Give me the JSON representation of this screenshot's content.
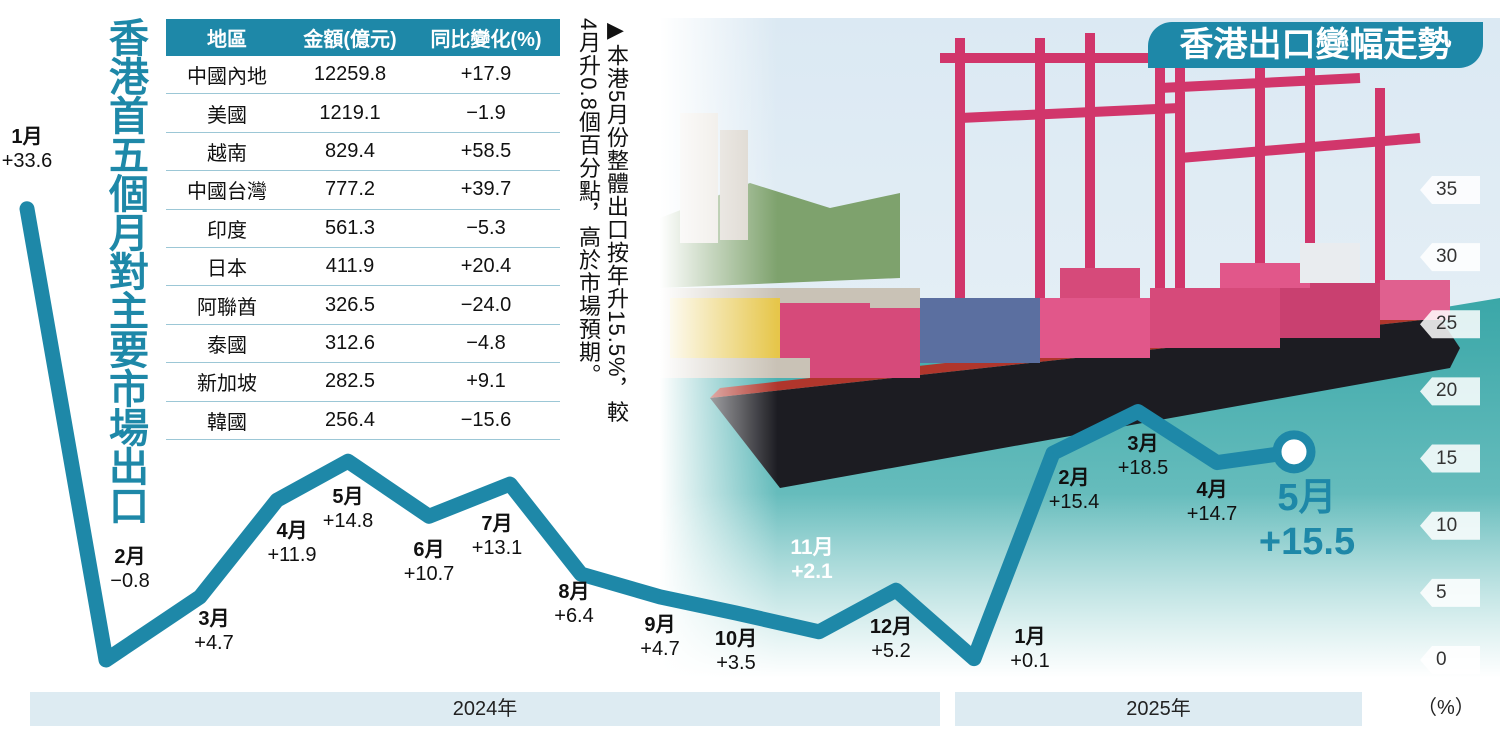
{
  "title_vertical": "香港首五個月對主要市場出口",
  "badge_title": "香港出口變幅走勢",
  "note_text": "▶本港5月份整體出口按年升15.5%，較4月升0.8個百分點，高於市場預期。",
  "table": {
    "headers": [
      "地區",
      "金額(億元)",
      "同比變化(%)"
    ],
    "rows": [
      [
        "中國內地",
        "12259.8",
        "+17.9"
      ],
      [
        "美國",
        "1219.1",
        "−1.9"
      ],
      [
        "越南",
        "829.4",
        "+58.5"
      ],
      [
        "中國台灣",
        "777.2",
        "+39.7"
      ],
      [
        "印度",
        "561.3",
        "−5.3"
      ],
      [
        "日本",
        "411.9",
        "+20.4"
      ],
      [
        "阿聯酋",
        "326.5",
        "−24.0"
      ],
      [
        "泰國",
        "312.6",
        "−4.8"
      ],
      [
        "新加坡",
        "282.5",
        "+9.1"
      ],
      [
        "韓國",
        "256.4",
        "−15.6"
      ]
    ]
  },
  "chart_data": {
    "type": "line",
    "categories": [
      "1月",
      "2月",
      "3月",
      "4月",
      "5月",
      "6月",
      "7月",
      "8月",
      "9月",
      "10月",
      "11月",
      "12月",
      "1月",
      "2月",
      "3月",
      "4月",
      "5月"
    ],
    "values": [
      33.6,
      -0.8,
      4.7,
      11.9,
      14.8,
      10.7,
      13.1,
      6.4,
      4.7,
      3.5,
      2.1,
      5.2,
      0.1,
      15.4,
      18.5,
      14.7,
      15.5
    ],
    "value_labels": [
      "+33.6",
      "−0.8",
      "+4.7",
      "+11.9",
      "+14.8",
      "+10.7",
      "+13.1",
      "+6.4",
      "+4.7",
      "+3.5",
      "+2.1",
      "+5.2",
      "+0.1",
      "+15.4",
      "+18.5",
      "+14.7",
      "+15.5"
    ],
    "year_groups": [
      "2024年",
      "2025年"
    ],
    "ylim": [
      0,
      35
    ],
    "yticks": [
      "35",
      "30",
      "25",
      "20",
      "15",
      "10",
      "5",
      "0"
    ],
    "unit": "（%）",
    "line_color": "#1e88a8"
  }
}
